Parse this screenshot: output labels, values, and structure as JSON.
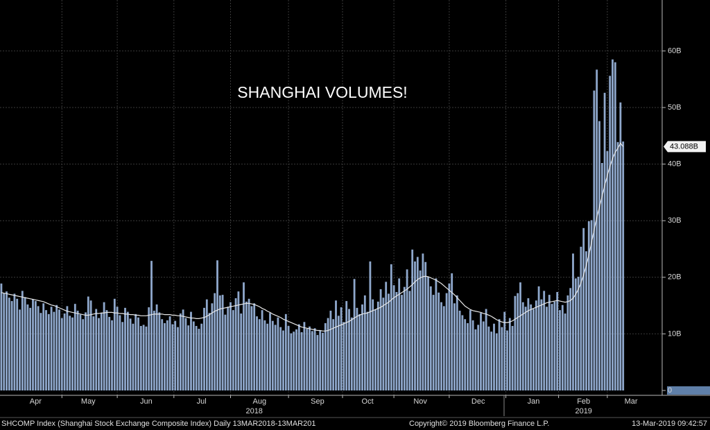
{
  "chart_data": {
    "type": "bar",
    "title": "SHANGHAI VOLUMES!",
    "footer_left": "SHCOMP Index (Shanghai Stock Exchange Composite Index)  Daily 13MAR2018-13MAR201",
    "footer_center": "Copyright© 2019 Bloomberg Finance L.P.",
    "footer_right": "13-Mar-2019 09:42:57",
    "categories": [
      null,
      null,
      null,
      null,
      null,
      null,
      null,
      null,
      null,
      null,
      null,
      null,
      null,
      "Apr",
      null,
      null,
      null,
      null,
      null,
      null,
      null,
      null,
      null,
      null,
      null,
      null,
      null,
      null,
      null,
      null,
      null,
      null,
      null,
      "May",
      null,
      null,
      null,
      null,
      null,
      null,
      null,
      null,
      null,
      null,
      null,
      null,
      null,
      null,
      null,
      null,
      null,
      null,
      null,
      null,
      null,
      "Jun",
      null,
      null,
      null,
      null,
      null,
      null,
      null,
      null,
      null,
      null,
      null,
      null,
      null,
      null,
      null,
      null,
      null,
      null,
      null,
      null,
      "Jul",
      null,
      null,
      null,
      null,
      null,
      null,
      null,
      null,
      null,
      null,
      null,
      null,
      null,
      null,
      null,
      null,
      null,
      null,
      null,
      null,
      null,
      "Aug",
      null,
      null,
      null,
      null,
      null,
      null,
      null,
      null,
      null,
      null,
      null,
      null,
      null,
      null,
      null,
      null,
      null,
      null,
      null,
      null,
      null,
      "Sep",
      null,
      null,
      null,
      null,
      null,
      null,
      null,
      null,
      null,
      null,
      null,
      null,
      null,
      null,
      null,
      null,
      null,
      null,
      "Oct",
      null,
      null,
      null,
      null,
      null,
      null,
      null,
      null,
      null,
      null,
      null,
      null,
      null,
      null,
      null,
      null,
      null,
      null,
      null,
      "Nov",
      null,
      null,
      null,
      null,
      null,
      null,
      null,
      null,
      null,
      null,
      null,
      null,
      null,
      null,
      null,
      null,
      null,
      null,
      null,
      null,
      null,
      "Dec",
      null,
      null,
      null,
      null,
      null,
      null,
      null,
      null,
      null,
      null,
      null,
      null,
      null,
      null,
      null,
      null,
      null,
      null,
      null,
      null,
      "Jan",
      null,
      null,
      null,
      null,
      null,
      null,
      null,
      null,
      null,
      null,
      null,
      null,
      null,
      null,
      null,
      null,
      null,
      null,
      "Feb",
      null,
      null,
      null,
      null,
      null,
      null,
      null,
      null,
      null,
      null,
      null,
      null,
      null,
      null,
      null,
      null,
      null,
      "Mar",
      null,
      null,
      null,
      null,
      null,
      null,
      null,
      null,
      null,
      null
    ],
    "year_categories": [
      null,
      null,
      null,
      null,
      null,
      null,
      null,
      null,
      null,
      null,
      null,
      null,
      null,
      null,
      null,
      null,
      null,
      null,
      null,
      null,
      null,
      null,
      null,
      null,
      null,
      null,
      null,
      null,
      null,
      null,
      null,
      null,
      null,
      null,
      null,
      null,
      null,
      null,
      null,
      null,
      null,
      null,
      null,
      null,
      null,
      null,
      null,
      null,
      null,
      null,
      null,
      null,
      null,
      null,
      null,
      null,
      null,
      null,
      null,
      null,
      null,
      null,
      null,
      null,
      null,
      null,
      null,
      null,
      null,
      null,
      null,
      null,
      null,
      null,
      null,
      null,
      null,
      null,
      null,
      null,
      null,
      null,
      null,
      null,
      null,
      null,
      null,
      null,
      null,
      null,
      null,
      null,
      null,
      null,
      null,
      null,
      "2018",
      null,
      null,
      null,
      null,
      null,
      null,
      null,
      null,
      null,
      null,
      null,
      null,
      null,
      null,
      null,
      null,
      null,
      null,
      null,
      null,
      null,
      null,
      null,
      null,
      null,
      null,
      null,
      null,
      null,
      null,
      null,
      null,
      null,
      null,
      null,
      null,
      null,
      null,
      null,
      null,
      null,
      null,
      null,
      null,
      null,
      null,
      null,
      null,
      null,
      null,
      null,
      null,
      null,
      null,
      null,
      null,
      null,
      null,
      null,
      null,
      null,
      null,
      null,
      null,
      null,
      null,
      null,
      null,
      null,
      null,
      null,
      null,
      null,
      null,
      null,
      null,
      null,
      null,
      null,
      null,
      null,
      null,
      null,
      null,
      null,
      null,
      null,
      null,
      null,
      null,
      null,
      null,
      null,
      null,
      null,
      null,
      null,
      null,
      null,
      null,
      null,
      null,
      null,
      null,
      null,
      null,
      null,
      null,
      null,
      null,
      null,
      null,
      null,
      null,
      null,
      null,
      null,
      null,
      null,
      null,
      null,
      null,
      null,
      null,
      "2019",
      null,
      null,
      null,
      null,
      null,
      null,
      null,
      null,
      null,
      null,
      null,
      null,
      null,
      null,
      null,
      null,
      null,
      null,
      null,
      null,
      null,
      null,
      null,
      null,
      null,
      null,
      null,
      null
    ],
    "series": [
      {
        "color": "#8fa8cc",
        "values": [
          18.9,
          17.2,
          17.5,
          16.4,
          15.8,
          17.1,
          16.2,
          14.3,
          17.6,
          16.5,
          15.2,
          14.6,
          16.1,
          15.8,
          14.9,
          13.7,
          15.4,
          14.2,
          13.5,
          14.8,
          13.9,
          15.1,
          14.3,
          12.8,
          13.6,
          14.9,
          13.2,
          12.9,
          15.3,
          14.1,
          13.4,
          12.6,
          13.8,
          16.6,
          15.9,
          13.1,
          14.4,
          12.8,
          13.7,
          15.6,
          14.2,
          13.0,
          12.4,
          16.2,
          14.8,
          13.3,
          12.1,
          14.6,
          13.9,
          12.7,
          11.8,
          13.5,
          12.9,
          11.4,
          11.6,
          11.3,
          14.7,
          22.9,
          14.1,
          15.2,
          13.8,
          12.6,
          11.9,
          12.4,
          13.1,
          11.7,
          12.3,
          11.2,
          13.6,
          14.3,
          12.8,
          11.5,
          13.9,
          12.2,
          11.4,
          10.9,
          11.8,
          14.6,
          16.1,
          13.7,
          15.4,
          17.2,
          23.0,
          16.8,
          16.9,
          13.4,
          14.8,
          15.6,
          14.2,
          16.3,
          17.5,
          13.6,
          19.1,
          15.7,
          16.2,
          14.9,
          15.4,
          13.1,
          12.6,
          14.2,
          12.4,
          11.8,
          13.7,
          12.3,
          11.6,
          12.9,
          11.2,
          10.6,
          13.5,
          11.4,
          10.1,
          10.4,
          10.8,
          11.7,
          10.3,
          12.1,
          10.9,
          11.3,
          10.5,
          11.0,
          9.8,
          10.6,
          10.2,
          11.9,
          12.8,
          14.1,
          12.6,
          15.9,
          13.2,
          14.7,
          12.1,
          15.8,
          14.4,
          12.9,
          19.7,
          14.6,
          13.5,
          15.2,
          16.8,
          13.9,
          22.8,
          16.1,
          14.3,
          15.7,
          17.9,
          16.4,
          19.2,
          17.1,
          22.3,
          18.6,
          17.4,
          19.8,
          16.9,
          18.3,
          21.4,
          17.6,
          24.9,
          22.8,
          23.6,
          21.2,
          24.2,
          22.7,
          20.1,
          18.4,
          16.9,
          19.8,
          17.3,
          15.6,
          14.9,
          17.2,
          18.9,
          20.7,
          15.4,
          16.8,
          14.1,
          13.3,
          12.6,
          11.9,
          14.2,
          12.4,
          10.8,
          11.6,
          13.7,
          12.2,
          14.4,
          11.3,
          10.4,
          11.8,
          10.1,
          12.6,
          11.2,
          13.9,
          10.6,
          12.8,
          11.4,
          16.7,
          17.2,
          19.1,
          15.6,
          14.8,
          16.3,
          15.2,
          14.4,
          15.9,
          18.4,
          16.1,
          17.6,
          14.8,
          16.9,
          15.3,
          15.7,
          17.4,
          14.2,
          15.1,
          13.6,
          16.8,
          18.1,
          24.2,
          19.8,
          20.1,
          25.4,
          28.7,
          24.6,
          29.9,
          30.1,
          53.0,
          56.7,
          47.6,
          40.2,
          52.6,
          42.3,
          55.6,
          58.5,
          58.0,
          43.9,
          50.9,
          44.0,
          null,
          null,
          null,
          null,
          null,
          null,
          null,
          null,
          null,
          null,
          null,
          null,
          null
        ]
      },
      {
        "type": "line",
        "color": "#e8e8e8",
        "last_value_label": "43.088B",
        "values": [
          17.3,
          17.2,
          17.1,
          17.0,
          16.9,
          16.8,
          16.7,
          16.6,
          16.5,
          16.4,
          16.3,
          16.2,
          16.1,
          16.0,
          15.9,
          15.8,
          15.7,
          15.5,
          15.3,
          15.1,
          15.0,
          14.8,
          14.6,
          14.4,
          14.2,
          14.0,
          13.9,
          13.8,
          13.7,
          13.6,
          13.5,
          13.4,
          13.3,
          13.3,
          13.4,
          13.5,
          13.6,
          13.6,
          13.7,
          13.7,
          13.8,
          13.8,
          13.8,
          13.7,
          13.7,
          13.6,
          13.6,
          13.5,
          13.5,
          13.4,
          13.4,
          13.3,
          13.3,
          13.2,
          13.2,
          13.2,
          13.3,
          13.4,
          13.5,
          13.5,
          13.5,
          13.5,
          13.4,
          13.4,
          13.4,
          13.3,
          13.3,
          13.2,
          13.2,
          13.1,
          13.0,
          12.9,
          12.8,
          12.8,
          12.7,
          12.7,
          12.8,
          12.9,
          13.1,
          13.4,
          13.7,
          14.0,
          14.2,
          14.4,
          14.5,
          14.6,
          14.7,
          14.8,
          14.9,
          15.0,
          15.1,
          15.2,
          15.3,
          15.4,
          15.4,
          15.3,
          15.2,
          15.0,
          14.8,
          14.5,
          14.3,
          14.0,
          13.8,
          13.5,
          13.3,
          13.1,
          12.9,
          12.6,
          12.4,
          12.2,
          12.0,
          11.8,
          11.6,
          11.4,
          11.2,
          11.1,
          11.0,
          10.9,
          10.8,
          10.7,
          10.6,
          10.6,
          10.5,
          10.5,
          10.6,
          10.8,
          11.0,
          11.2,
          11.4,
          11.6,
          11.8,
          12.0,
          12.2,
          12.5,
          12.8,
          13.1,
          13.3,
          13.5,
          13.6,
          13.7,
          13.9,
          14.1,
          14.3,
          14.5,
          14.7,
          15.0,
          15.3,
          15.6,
          16.0,
          16.4,
          16.7,
          17.0,
          17.3,
          17.6,
          17.9,
          18.3,
          18.7,
          19.2,
          19.6,
          19.9,
          20.1,
          20.2,
          20.1,
          19.9,
          19.7,
          19.5,
          19.2,
          18.9,
          18.5,
          18.1,
          17.7,
          17.3,
          16.9,
          16.4,
          15.9,
          15.4,
          14.9,
          14.6,
          14.3,
          14.1,
          14.0,
          13.9,
          13.8,
          13.6,
          13.5,
          13.3,
          13.1,
          12.8,
          12.5,
          12.3,
          12.1,
          12.0,
          12.0,
          12.1,
          12.3,
          12.6,
          12.9,
          13.2,
          13.5,
          13.8,
          14.1,
          14.3,
          14.5,
          14.7,
          14.9,
          15.1,
          15.3,
          15.5,
          15.6,
          15.7,
          15.8,
          15.9,
          15.8,
          15.7,
          15.6,
          15.7,
          15.9,
          16.3,
          17.0,
          17.9,
          19.0,
          20.4,
          22.1,
          24.0,
          26.1,
          28.4,
          30.5,
          32.4,
          34.3,
          36.2,
          38.0,
          39.6,
          41.0,
          42.1,
          42.8,
          43.7,
          43.088,
          null,
          null,
          null,
          null,
          null,
          null,
          null,
          null,
          null,
          null,
          null,
          null,
          null
        ]
      }
    ],
    "ylim": [
      0,
      69
    ],
    "yticks": [
      0,
      {
        "value": 10,
        "label": "10B"
      },
      {
        "value": 20,
        "label": "20B"
      },
      {
        "value": 30,
        "label": "30B"
      },
      {
        "value": 40,
        "label": "40B"
      },
      {
        "value": 50,
        "label": "50B"
      },
      {
        "value": 60,
        "label": "60B"
      }
    ],
    "grid": true
  }
}
